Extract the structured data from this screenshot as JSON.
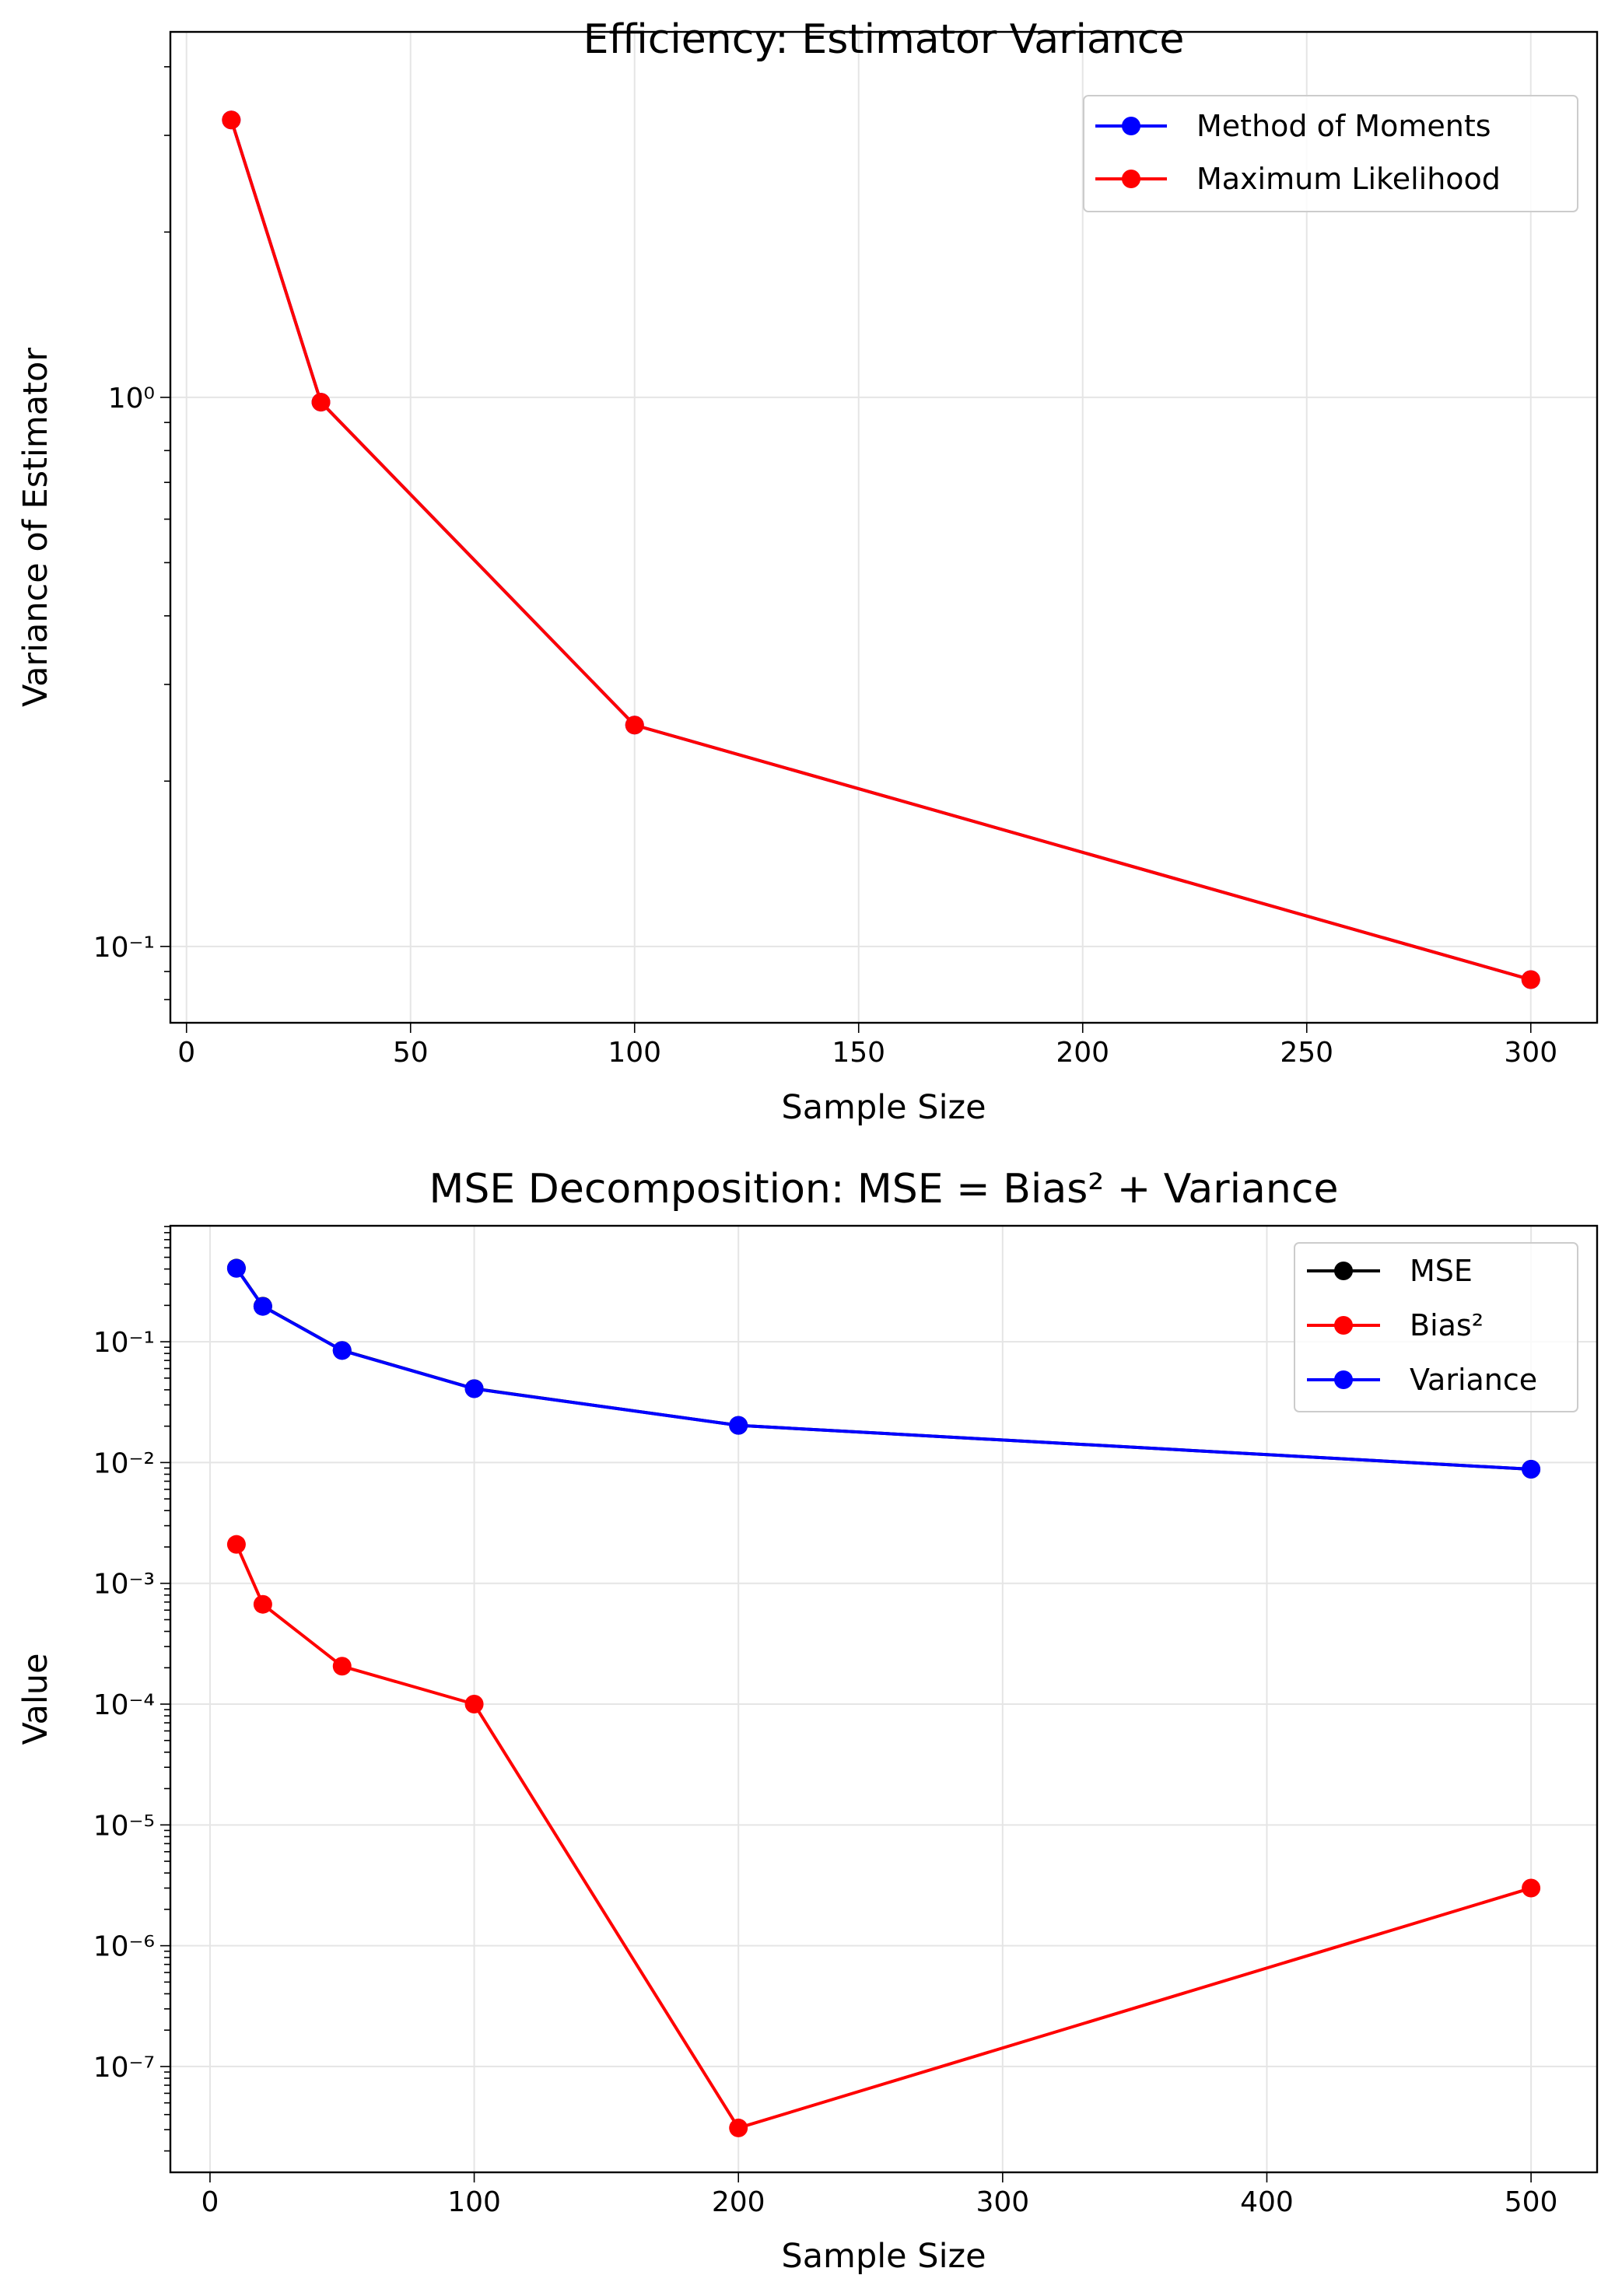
{
  "chart_data": [
    {
      "type": "line",
      "title": "Efficiency: Estimator Variance",
      "xlabel": "Sample Size",
      "ylabel": "Variance of Estimator",
      "xscale": "linear",
      "yscale": "log",
      "xlim": [
        -3.6,
        314.8
      ],
      "ylim": [
        0.0726,
        4.63
      ],
      "x_ticks": [
        0,
        50,
        100,
        150,
        200,
        250,
        300
      ],
      "x_tick_labels": [
        "0",
        "50",
        "100",
        "150",
        "200",
        "250",
        "300"
      ],
      "y_ticks": [
        0.1,
        1
      ],
      "y_tick_labels": [
        "10⁻¹",
        "10⁰"
      ],
      "grid": true,
      "legend_position": "top-right",
      "x": [
        10,
        30,
        100,
        300
      ],
      "series": [
        {
          "name": "Method of Moments",
          "color": "#0000ff",
          "values": [
            3.2,
            0.98,
            0.253,
            0.087
          ]
        },
        {
          "name": "Maximum Likelihood",
          "color": "#ff0000",
          "values": [
            3.2,
            0.98,
            0.253,
            0.087
          ]
        }
      ]
    },
    {
      "type": "line",
      "title": "MSE Decomposition: MSE = Bias² + Variance",
      "xlabel": "Sample Size",
      "ylabel": "Value",
      "xscale": "linear",
      "yscale": "log",
      "xlim": [
        -15,
        525
      ],
      "ylim": [
        1.33e-08,
        0.912
      ],
      "x_ticks": [
        0,
        100,
        200,
        300,
        400,
        500
      ],
      "x_tick_labels": [
        "0",
        "100",
        "200",
        "300",
        "400",
        "500"
      ],
      "y_ticks": [
        1e-07,
        1e-06,
        1e-05,
        0.0001,
        0.001,
        0.01,
        0.1
      ],
      "y_tick_labels": [
        "10⁻⁷",
        "10⁻⁶",
        "10⁻⁵",
        "10⁻⁴",
        "10⁻³",
        "10⁻²",
        "10⁻¹"
      ],
      "grid": true,
      "legend_position": "top-right",
      "x": [
        10,
        20,
        50,
        100,
        200,
        500
      ],
      "series": [
        {
          "name": "MSE",
          "color": "#000000",
          "values": [
            0.407,
            0.197,
            0.0848,
            0.0409,
            0.0203,
            0.0088
          ]
        },
        {
          "name": "Bias²",
          "color": "#ff0000",
          "values": [
            0.0021,
            0.00067,
            0.000206,
            0.0001,
            3.1e-08,
            3e-06
          ]
        },
        {
          "name": "Variance",
          "color": "#0000ff",
          "values": [
            0.405,
            0.196,
            0.0846,
            0.0408,
            0.0203,
            0.0088
          ]
        }
      ]
    }
  ]
}
